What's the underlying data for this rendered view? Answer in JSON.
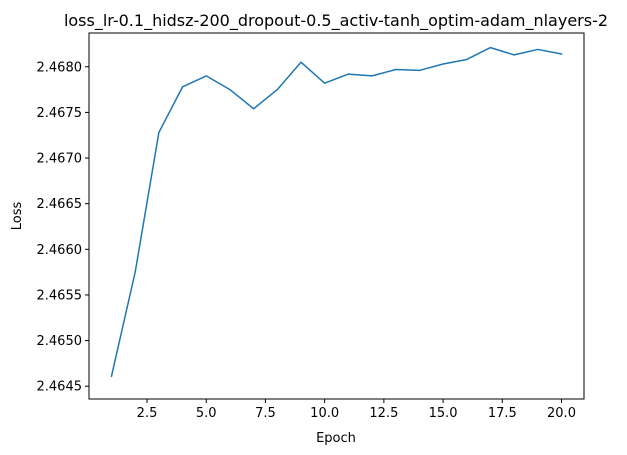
{
  "chart_data": {
    "type": "line",
    "title": "loss_lr-0.1_hidsz-200_dropout-0.5_activ-tanh_optim-adam_nlayers-2",
    "xlabel": "Epoch",
    "ylabel": "Loss",
    "xlim": [
      0.05,
      20.95
    ],
    "ylim": [
      2.46436,
      2.46837
    ],
    "xticks": [
      2.5,
      5.0,
      7.5,
      10.0,
      12.5,
      15.0,
      17.5,
      20.0
    ],
    "xtick_labels": [
      "2.5",
      "5.0",
      "7.5",
      "10.0",
      "12.5",
      "15.0",
      "17.5",
      "20.0"
    ],
    "yticks": [
      2.4645,
      2.465,
      2.4655,
      2.466,
      2.4665,
      2.467,
      2.4675,
      2.468
    ],
    "ytick_labels": [
      "2.4645",
      "2.4650",
      "2.4655",
      "2.4660",
      "2.4665",
      "2.4670",
      "2.4675",
      "2.4680"
    ],
    "grid": false,
    "series": [
      {
        "color": "#1f77b4",
        "x": [
          1,
          2,
          3,
          4,
          5,
          6,
          7,
          8,
          9,
          10,
          11,
          12,
          13,
          14,
          15,
          16,
          17,
          18,
          19,
          20
        ],
        "y": [
          2.46461,
          2.46575,
          2.46728,
          2.46778,
          2.4679,
          2.46775,
          2.46754,
          2.46775,
          2.46805,
          2.46782,
          2.46792,
          2.4679,
          2.46797,
          2.46796,
          2.46803,
          2.46808,
          2.46821,
          2.46813,
          2.46819,
          2.46814
        ]
      }
    ]
  }
}
